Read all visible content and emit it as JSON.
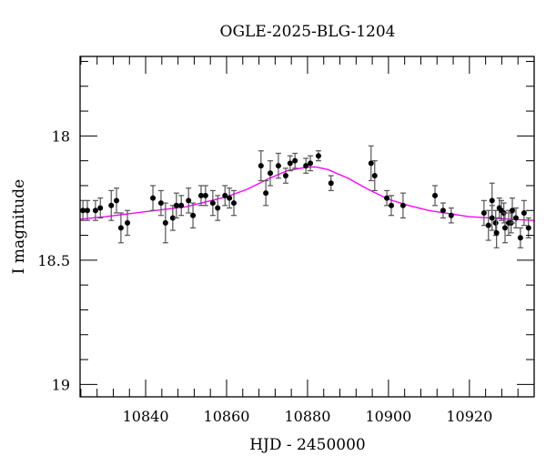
{
  "chart_data": {
    "type": "scatter",
    "title": "OGLE-2025-BLG-1204",
    "xlabel": "HJD - 2450000",
    "ylabel": "I magnitude",
    "xlim": [
      10823.8,
      10936
    ],
    "ylim": [
      17.68,
      19.05
    ],
    "y_inverted": true,
    "x_major_ticks": [
      10840,
      10860,
      10880,
      10900,
      10920
    ],
    "x_minor_step": 4,
    "y_major_ticks": [
      18,
      18.5,
      19
    ],
    "y_major_labels": [
      "18",
      "18.5",
      "19"
    ],
    "y_minor_step": 0.1,
    "grid": false,
    "legend": null,
    "colors": {
      "points": "#000000",
      "errorbars": "#555555",
      "model": "#ff00ff",
      "frame": "#000000"
    },
    "series": [
      {
        "name": "observations",
        "kind": "errorbar",
        "x": [
          10824.5,
          10825.6,
          10827.6,
          10828.8,
          10831.5,
          10832.8,
          10833.9,
          10835.5,
          10841.8,
          10843.8,
          10844.9,
          10846.7,
          10847.6,
          10848.8,
          10850.6,
          10851.7,
          10853.7,
          10854.8,
          10856.6,
          10857.8,
          10859.6,
          10860.7,
          10861.8,
          10868.5,
          10869.7,
          10870.8,
          10872.8,
          10874.6,
          10875.7,
          10876.9,
          10879.6,
          10880.7,
          10882.7,
          10885.8,
          10895.7,
          10896.6,
          10899.6,
          10900.7,
          10903.6,
          10911.5,
          10913.5,
          10915.5,
          10923.6,
          10924.7,
          10925.6,
          10925.6,
          10926.5,
          10926.7,
          10927.4,
          10927.9,
          10928.5,
          10928.8,
          10929.7,
          10930.3,
          10930.6,
          10931.5,
          10932.6,
          10933.5,
          10934.6
        ],
        "y": [
          18.3,
          18.3,
          18.3,
          18.29,
          18.28,
          18.26,
          18.37,
          18.35,
          18.25,
          18.27,
          18.35,
          18.33,
          18.28,
          18.28,
          18.26,
          18.32,
          18.24,
          18.24,
          18.27,
          18.29,
          18.24,
          18.25,
          18.27,
          18.12,
          18.23,
          18.15,
          18.12,
          18.16,
          18.11,
          18.1,
          18.12,
          18.11,
          18.08,
          18.19,
          18.11,
          18.16,
          18.25,
          18.28,
          18.28,
          18.24,
          18.3,
          18.32,
          18.31,
          18.36,
          18.26,
          18.33,
          18.35,
          18.39,
          18.29,
          18.3,
          18.31,
          18.37,
          18.35,
          18.35,
          18.3,
          18.33,
          18.41,
          18.31,
          18.37
        ],
        "yerr": [
          0.04,
          0.04,
          0.04,
          0.04,
          0.06,
          0.05,
          0.06,
          0.05,
          0.05,
          0.05,
          0.08,
          0.05,
          0.05,
          0.04,
          0.05,
          0.05,
          0.04,
          0.04,
          0.05,
          0.05,
          0.04,
          0.04,
          0.05,
          0.06,
          0.05,
          0.05,
          0.05,
          0.03,
          0.03,
          0.03,
          0.03,
          0.03,
          0.02,
          0.03,
          0.07,
          0.06,
          0.03,
          0.04,
          0.05,
          0.04,
          0.03,
          0.03,
          0.05,
          0.06,
          0.07,
          0.05,
          0.05,
          0.06,
          0.04,
          0.04,
          0.04,
          0.06,
          0.05,
          0.04,
          0.05,
          0.04,
          0.04,
          0.05,
          0.04
        ]
      },
      {
        "name": "model",
        "kind": "line",
        "x": [
          10823.8,
          10830,
          10840,
          10850,
          10860,
          10865,
          10870,
          10875,
          10880,
          10882,
          10885,
          10890,
          10895,
          10900,
          10905,
          10910,
          10920,
          10930,
          10936
        ],
        "y": [
          18.335,
          18.325,
          18.305,
          18.285,
          18.245,
          18.215,
          18.175,
          18.14,
          18.125,
          18.125,
          18.135,
          18.17,
          18.215,
          18.255,
          18.28,
          18.3,
          18.325,
          18.335,
          18.34
        ]
      }
    ]
  }
}
